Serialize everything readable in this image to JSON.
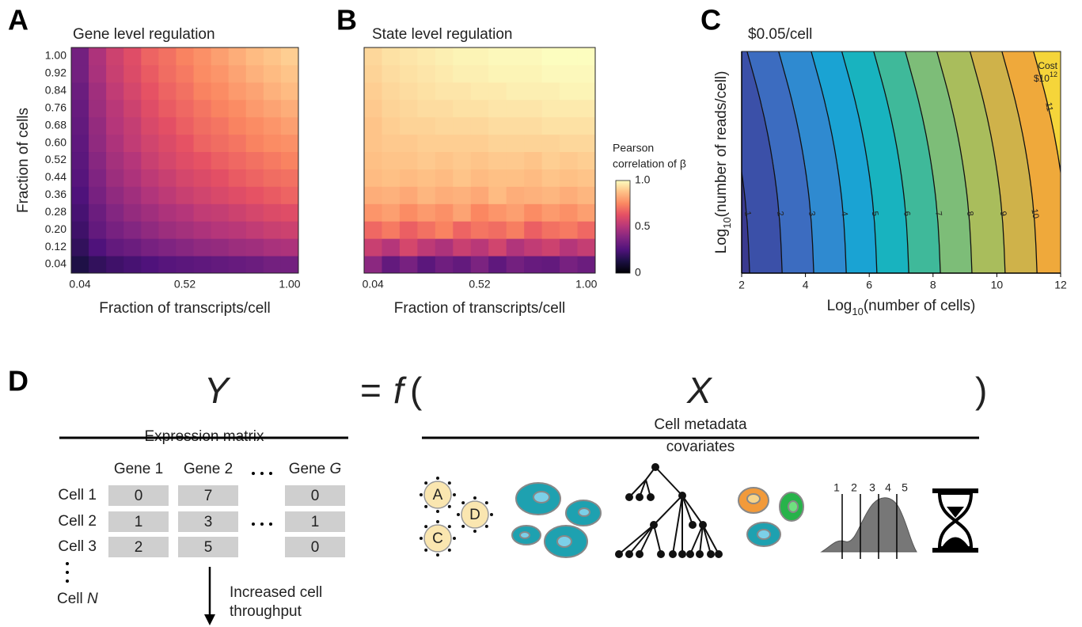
{
  "chart_data": [
    {
      "type": "heatmap",
      "panel": "A",
      "title": "Gene level regulation",
      "xlabel": "Fraction of transcripts/cell",
      "ylabel": "Fraction of cells",
      "colormap": "magma",
      "xlim": [
        0,
        1.04
      ],
      "ylim": [
        0,
        1.04
      ],
      "x": [
        0.04,
        0.12,
        0.2,
        0.28,
        0.36,
        0.44,
        0.52,
        0.6,
        0.68,
        0.76,
        0.84,
        0.92,
        1
      ],
      "y": [
        0.04,
        0.12,
        0.2,
        0.28,
        0.36,
        0.44,
        0.52,
        0.6,
        0.68,
        0.76,
        0.84,
        0.92,
        1
      ],
      "xticks": [
        {
          "value": 0.04,
          "label": "0.04"
        },
        0.52,
        {
          "value": 1,
          "label": "1.00"
        }
      ],
      "yticks": [
        0.04,
        0.12,
        {
          "value": 0.2,
          "label": "0.20"
        },
        0.28,
        0.36,
        0.44,
        0.52,
        {
          "value": 0.6,
          "label": "0.60"
        },
        0.68,
        0.76,
        0.84,
        0.92,
        {
          "value": 1,
          "label": "1.00"
        }
      ],
      "values": [
        [
          0.13,
          0.18,
          0.21,
          0.23,
          0.25,
          0.27,
          0.28,
          0.29,
          0.3,
          0.31,
          0.32,
          0.34,
          0.34
        ],
        [
          0.18,
          0.25,
          0.3,
          0.32,
          0.35,
          0.37,
          0.39,
          0.41,
          0.42,
          0.44,
          0.45,
          0.47,
          0.48
        ],
        [
          0.21,
          0.3,
          0.35,
          0.38,
          0.41,
          0.44,
          0.46,
          0.48,
          0.5,
          0.51,
          0.53,
          0.55,
          0.56
        ],
        [
          0.23,
          0.32,
          0.38,
          0.42,
          0.45,
          0.48,
          0.5,
          0.53,
          0.54,
          0.56,
          0.58,
          0.6,
          0.61
        ],
        [
          0.25,
          0.35,
          0.41,
          0.45,
          0.49,
          0.52,
          0.55,
          0.57,
          0.59,
          0.61,
          0.63,
          0.65,
          0.67
        ],
        [
          0.27,
          0.37,
          0.44,
          0.48,
          0.52,
          0.55,
          0.58,
          0.6,
          0.62,
          0.65,
          0.67,
          0.69,
          0.7
        ],
        [
          0.28,
          0.39,
          0.46,
          0.5,
          0.55,
          0.58,
          0.61,
          0.63,
          0.66,
          0.68,
          0.7,
          0.72,
          0.74
        ],
        [
          0.29,
          0.41,
          0.48,
          0.53,
          0.57,
          0.6,
          0.63,
          0.67,
          0.69,
          0.71,
          0.74,
          0.76,
          0.77
        ],
        [
          0.3,
          0.42,
          0.5,
          0.54,
          0.59,
          0.62,
          0.66,
          0.69,
          0.71,
          0.74,
          0.76,
          0.78,
          0.8
        ],
        [
          0.31,
          0.44,
          0.51,
          0.56,
          0.61,
          0.65,
          0.68,
          0.71,
          0.74,
          0.76,
          0.79,
          0.81,
          0.83
        ],
        [
          0.32,
          0.45,
          0.53,
          0.58,
          0.63,
          0.67,
          0.7,
          0.74,
          0.76,
          0.79,
          0.81,
          0.84,
          0.86
        ],
        [
          0.34,
          0.47,
          0.55,
          0.6,
          0.65,
          0.69,
          0.72,
          0.76,
          0.78,
          0.81,
          0.84,
          0.86,
          0.88
        ],
        [
          0.34,
          0.48,
          0.56,
          0.61,
          0.67,
          0.7,
          0.74,
          0.77,
          0.8,
          0.83,
          0.86,
          0.88,
          0.9
        ]
      ]
    },
    {
      "type": "heatmap",
      "panel": "B",
      "title": "State level regulation",
      "xlabel": "Fraction of transcripts/cell",
      "colormap": "magma",
      "xlim": [
        0,
        1.04
      ],
      "ylim": [
        0,
        1.04
      ],
      "x": [
        0.04,
        0.12,
        0.2,
        0.28,
        0.36,
        0.44,
        0.52,
        0.6,
        0.68,
        0.76,
        0.84,
        0.92,
        1
      ],
      "y": [
        0.04,
        0.12,
        0.2,
        0.28,
        0.36,
        0.44,
        0.52,
        0.6,
        0.68,
        0.76,
        0.84,
        0.92,
        1
      ],
      "xticks": [
        {
          "value": 0.04,
          "label": "0.04"
        },
        0.52,
        {
          "value": 1,
          "label": "1.00"
        }
      ],
      "colorbar": {
        "label": [
          "Pearson",
          "correlation of β"
        ],
        "lim": [
          0,
          1
        ],
        "ticks": [
          0,
          0.5,
          {
            "value": 1,
            "label": "1.0"
          }
        ]
      },
      "values": [
        [
          0.4,
          0.3,
          0.35,
          0.28,
          0.33,
          0.3,
          0.36,
          0.29,
          0.34,
          0.31,
          0.3,
          0.35,
          0.32
        ],
        [
          0.55,
          0.5,
          0.58,
          0.52,
          0.48,
          0.55,
          0.51,
          0.57,
          0.49,
          0.53,
          0.56,
          0.5,
          0.54
        ],
        [
          0.68,
          0.72,
          0.66,
          0.7,
          0.74,
          0.67,
          0.71,
          0.69,
          0.73,
          0.66,
          0.7,
          0.72,
          0.68
        ],
        [
          0.78,
          0.8,
          0.76,
          0.79,
          0.77,
          0.81,
          0.75,
          0.78,
          0.8,
          0.76,
          0.79,
          0.77,
          0.8
        ],
        [
          0.83,
          0.84,
          0.82,
          0.85,
          0.83,
          0.84,
          0.82,
          0.86,
          0.83,
          0.84,
          0.85,
          0.83,
          0.85
        ],
        [
          0.86,
          0.87,
          0.86,
          0.87,
          0.86,
          0.88,
          0.86,
          0.87,
          0.87,
          0.86,
          0.88,
          0.87,
          0.88
        ],
        [
          0.87,
          0.88,
          0.88,
          0.89,
          0.88,
          0.89,
          0.88,
          0.89,
          0.89,
          0.88,
          0.9,
          0.89,
          0.9
        ],
        [
          0.88,
          0.89,
          0.89,
          0.9,
          0.9,
          0.9,
          0.9,
          0.91,
          0.91,
          0.91,
          0.91,
          0.92,
          0.92
        ],
        [
          0.88,
          0.9,
          0.91,
          0.91,
          0.92,
          0.92,
          0.92,
          0.93,
          0.93,
          0.93,
          0.94,
          0.94,
          0.94
        ],
        [
          0.89,
          0.91,
          0.92,
          0.93,
          0.93,
          0.94,
          0.94,
          0.95,
          0.95,
          0.95,
          0.96,
          0.96,
          0.96
        ],
        [
          0.9,
          0.92,
          0.93,
          0.94,
          0.95,
          0.95,
          0.96,
          0.96,
          0.97,
          0.97,
          0.97,
          0.98,
          0.98
        ],
        [
          0.91,
          0.93,
          0.94,
          0.95,
          0.96,
          0.97,
          0.97,
          0.98,
          0.98,
          0.98,
          0.99,
          0.99,
          0.99
        ],
        [
          0.92,
          0.94,
          0.95,
          0.96,
          0.97,
          0.98,
          0.98,
          0.99,
          0.99,
          0.99,
          1.0,
          1.0,
          1.0
        ]
      ]
    },
    {
      "type": "contour",
      "panel": "C",
      "title": "$0.05/cell",
      "xlabel": [
        "Log",
        "10",
        "(number of cells)"
      ],
      "ylabel": [
        "Log",
        "10",
        "(number of reads/cell)"
      ],
      "xlim": [
        2,
        12
      ],
      "ylim": [
        0,
        1
      ],
      "xticks": [
        2,
        4,
        6,
        8,
        10,
        12
      ],
      "y": [
        0,
        0.25,
        0.5,
        0.75,
        1
      ],
      "contours": [
        {
          "level": 1,
          "x": [
            2.25,
            2.18,
            1.97,
            1.63,
            1.15
          ]
        },
        {
          "level": 2,
          "x": [
            3.27,
            3.2,
            2.99,
            2.65,
            2.17
          ]
        },
        {
          "level": 3,
          "x": [
            4.26,
            4.19,
            3.98,
            3.64,
            3.16
          ]
        },
        {
          "level": 4,
          "x": [
            5.28,
            5.21,
            5.0,
            4.66,
            4.18
          ]
        },
        {
          "level": 5,
          "x": [
            6.24,
            6.17,
            5.96,
            5.62,
            5.14
          ]
        },
        {
          "level": 6,
          "x": [
            7.24,
            7.17,
            6.96,
            6.62,
            6.14
          ]
        },
        {
          "level": 7,
          "x": [
            8.23,
            8.16,
            7.95,
            7.61,
            7.13
          ]
        },
        {
          "level": 8,
          "x": [
            9.22,
            9.15,
            8.94,
            8.6,
            8.12
          ]
        },
        {
          "level": 9,
          "x": [
            10.26,
            10.19,
            9.98,
            9.64,
            9.16
          ]
        },
        {
          "level": 10,
          "x": [
            11.26,
            11.19,
            10.98,
            10.64,
            10.16
          ]
        },
        {
          "level": 11,
          "x": [
            12.25,
            12.18,
            11.97,
            11.63,
            11.15
          ]
        }
      ],
      "colors": [
        "#3a3a8f",
        "#3b50a8",
        "#3c6cc0",
        "#2f8ad0",
        "#1aa3d3",
        "#18b3bf",
        "#3fb99a",
        "#7dbd78",
        "#a9bd5c",
        "#cfb24a",
        "#efa93b",
        "#f5d53a"
      ],
      "annotation": {
        "text": "Cost",
        "base": "$10",
        "exponent": "12"
      }
    }
  ],
  "panel_d": {
    "letter": "D",
    "lhs": "Y",
    "equals": "=",
    "function": "f",
    "open": "(",
    "rhs": "X",
    "close": ")",
    "matrix_header": "Expression matrix",
    "metadata_header": [
      "Cell metadata",
      "covariates"
    ],
    "genes": [
      "Gene 1",
      "Gene 2"
    ],
    "last_gene": {
      "text": "Gene",
      "var": "G"
    },
    "cells": [
      "Cell 1",
      "Cell 2",
      "Cell 3"
    ],
    "last_cell": {
      "text": "Cell",
      "var": "N"
    },
    "matrix": [
      [
        "0",
        "7",
        "0"
      ],
      [
        "1",
        "3",
        "1"
      ],
      [
        "2",
        "5",
        "0"
      ]
    ],
    "arrow_label": [
      "Increased cell",
      "throughput"
    ],
    "clusters": [
      "A",
      "D",
      "C"
    ],
    "stages": [
      "1",
      "2",
      "3",
      "4",
      "5"
    ]
  }
}
